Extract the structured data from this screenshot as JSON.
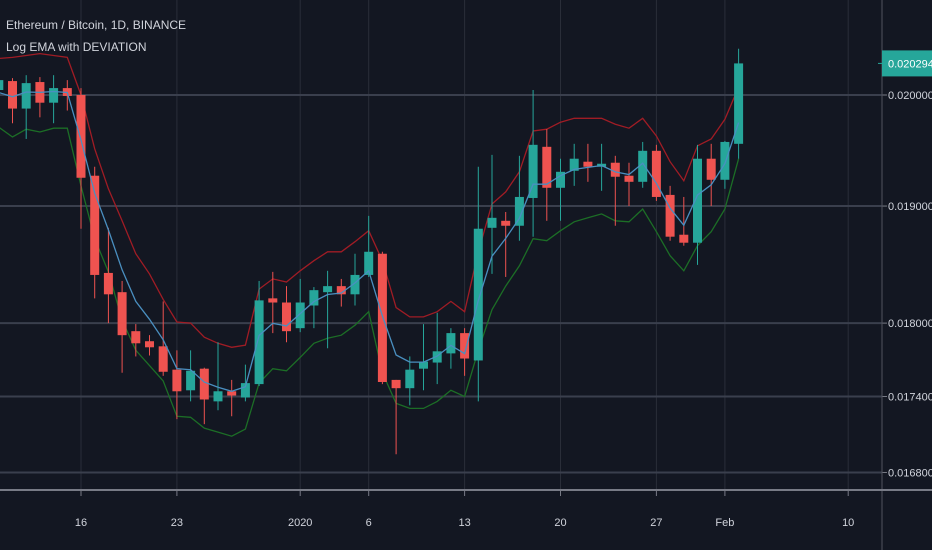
{
  "header": {
    "symbol_title": "Ethereum / Bitcoin, 1D, BINANCE",
    "indicator_title": "Log EMA with DEVIATION"
  },
  "colors": {
    "background": "#131722",
    "grid": "#2a2e39",
    "up": "#26a69a",
    "down": "#ef5350",
    "ema": "#4a8fc0",
    "upper_band": "#a01c25",
    "lower_band": "#1c6e26",
    "axis_text": "#d1d4dc",
    "last_price_badge": "#26a69a"
  },
  "chart_data": {
    "type": "candlestick",
    "y_scale": "log",
    "grid": true,
    "last_price_label": "0.020294",
    "y_ticks": [
      {
        "value": 0.02,
        "label": "0.020000"
      },
      {
        "value": 0.019,
        "label": "0.019000"
      },
      {
        "value": 0.018,
        "label": "0.018000"
      },
      {
        "value": 0.0174,
        "label": "0.017400"
      },
      {
        "value": 0.0168,
        "label": "0.016800"
      }
    ],
    "x_ticks": [
      {
        "date": "2019-12-16",
        "label": "16"
      },
      {
        "date": "2019-12-23",
        "label": "23"
      },
      {
        "date": "2020-01-01",
        "label": "2020"
      },
      {
        "date": "2020-01-06",
        "label": "6"
      },
      {
        "date": "2020-01-13",
        "label": "13"
      },
      {
        "date": "2020-01-20",
        "label": "20"
      },
      {
        "date": "2020-01-27",
        "label": "27"
      },
      {
        "date": "2020-02-01",
        "label": "Feb"
      },
      {
        "date": "2020-02-10",
        "label": "10"
      }
    ],
    "start_date": "2019-12-10",
    "ohlc": [
      [
        0.020046,
        0.020184,
        0.019955,
        0.020138
      ],
      [
        0.020129,
        0.020156,
        0.019741,
        0.019875
      ],
      [
        0.019875,
        0.020184,
        0.019598,
        0.02011
      ],
      [
        0.02012,
        0.020166,
        0.019795,
        0.019929
      ],
      [
        0.019929,
        0.020184,
        0.019741,
        0.020064
      ],
      [
        0.020064,
        0.020138,
        0.019857,
        0.019991
      ],
      [
        0.02,
        0.020064,
        0.018802,
        0.01925
      ],
      [
        0.019268,
        0.019348,
        0.018207,
        0.018405
      ],
      [
        0.018422,
        0.01881,
        0.018,
        0.018241
      ],
      [
        0.018259,
        0.018354,
        0.017592,
        0.0179
      ],
      [
        0.017933,
        0.017992,
        0.017725,
        0.017833
      ],
      [
        0.01785,
        0.0179,
        0.017733,
        0.0178
      ],
      [
        0.017808,
        0.018181,
        0.017567,
        0.0176
      ],
      [
        0.017617,
        0.017775,
        0.017219,
        0.017442
      ],
      [
        0.01745,
        0.017775,
        0.017361,
        0.017608
      ],
      [
        0.017625,
        0.017633,
        0.017179,
        0.017376
      ],
      [
        0.017361,
        0.017842,
        0.01729,
        0.017442
      ],
      [
        0.017442,
        0.017534,
        0.017242,
        0.017408
      ],
      [
        0.017392,
        0.017658,
        0.017361,
        0.017508
      ],
      [
        0.0175,
        0.018354,
        0.017484,
        0.01819
      ],
      [
        0.018207,
        0.018431,
        0.017917,
        0.018172
      ],
      [
        0.018172,
        0.01831,
        0.017842,
        0.017933
      ],
      [
        0.017958,
        0.018371,
        0.017925,
        0.018172
      ],
      [
        0.018147,
        0.018302,
        0.017958,
        0.018276
      ],
      [
        0.018259,
        0.01844,
        0.017792,
        0.01831
      ],
      [
        0.01831,
        0.018371,
        0.018138,
        0.018241
      ],
      [
        0.018241,
        0.018586,
        0.018147,
        0.018405
      ],
      [
        0.018405,
        0.018914,
        0.018388,
        0.018603
      ],
      [
        0.018586,
        0.018603,
        0.0175,
        0.017517
      ],
      [
        0.017534,
        0.017534,
        0.016942,
        0.017467
      ],
      [
        0.017467,
        0.017725,
        0.017329,
        0.017617
      ],
      [
        0.017625,
        0.017992,
        0.01745,
        0.017683
      ],
      [
        0.017675,
        0.018086,
        0.0175,
        0.017767
      ],
      [
        0.01775,
        0.017958,
        0.017625,
        0.017917
      ],
      [
        0.017917,
        0.017958,
        0.017567,
        0.017708
      ],
      [
        0.017692,
        0.019348,
        0.017361,
        0.018802
      ],
      [
        0.01881,
        0.019455,
        0.018414,
        0.018897
      ],
      [
        0.018871,
        0.018948,
        0.018388,
        0.018828
      ],
      [
        0.018828,
        0.019446,
        0.018698,
        0.01908
      ],
      [
        0.019071,
        0.020046,
        0.018733,
        0.019545
      ],
      [
        0.019527,
        0.019687,
        0.018871,
        0.019161
      ],
      [
        0.019161,
        0.01942,
        0.018871,
        0.019303
      ],
      [
        0.019312,
        0.019554,
        0.019178,
        0.01942
      ],
      [
        0.019393,
        0.019554,
        0.019214,
        0.019348
      ],
      [
        0.019348,
        0.019554,
        0.019134,
        0.019375
      ],
      [
        0.019384,
        0.019446,
        0.018828,
        0.019259
      ],
      [
        0.019268,
        0.019384,
        0.019,
        0.019214
      ],
      [
        0.019214,
        0.019571,
        0.019161,
        0.019491
      ],
      [
        0.019491,
        0.019545,
        0.019045,
        0.01908
      ],
      [
        0.019098,
        0.019178,
        0.018698,
        0.018733
      ],
      [
        0.01875,
        0.01908,
        0.018655,
        0.018681
      ],
      [
        0.018681,
        0.019545,
        0.018491,
        0.01942
      ],
      [
        0.01942,
        0.019554,
        0.019,
        0.019232
      ],
      [
        0.019232,
        0.01958,
        0.019152,
        0.019571
      ],
      [
        0.019554,
        0.020432,
        0.01942,
        0.020294
      ]
    ],
    "ema": [
      0.020023,
      0.019983,
      0.020028,
      0.020024,
      0.020032,
      0.020023,
      0.019589,
      0.019113,
      0.018792,
      0.018449,
      0.018181,
      0.018032,
      0.017862,
      0.017626,
      0.017617,
      0.017516,
      0.017475,
      0.017442,
      0.017479,
      0.017897,
      0.017998,
      0.017977,
      0.018079,
      0.01818,
      0.018239,
      0.018252,
      0.018337,
      0.01844,
      0.018059,
      0.017737,
      0.017679,
      0.017679,
      0.017728,
      0.017816,
      0.017748,
      0.018189,
      0.018565,
      0.018718,
      0.018893,
      0.019193,
      0.019193,
      0.019268,
      0.019324,
      0.019342,
      0.019359,
      0.019302,
      0.019279,
      0.01938,
      0.019201,
      0.018981,
      0.018832,
      0.019096,
      0.019187,
      0.019376,
      0.019747
    ],
    "upper": [
      0.02034,
      0.02035,
      0.020368,
      0.020386,
      0.020368,
      0.02035,
      0.02,
      0.019509,
      0.019152,
      0.018871,
      0.018586,
      0.018414,
      0.018198,
      0.018009,
      0.018,
      0.017883,
      0.017833,
      0.0178,
      0.017817,
      0.018285,
      0.018371,
      0.018345,
      0.01844,
      0.018526,
      0.018603,
      0.018603,
      0.01869,
      0.018785,
      0.018526,
      0.018129,
      0.018052,
      0.018052,
      0.018095,
      0.018181,
      0.018095,
      0.018603,
      0.019018,
      0.019125,
      0.019303,
      0.01967,
      0.019687,
      0.01975,
      0.019786,
      0.019786,
      0.019786,
      0.019732,
      0.019696,
      0.019786,
      0.019625,
      0.019393,
      0.019223,
      0.019536,
      0.019598,
      0.019777,
      0.020074
    ],
    "lower": [
      0.019705,
      0.019616,
      0.019687,
      0.019661,
      0.019696,
      0.019696,
      0.019178,
      0.018716,
      0.018431,
      0.018026,
      0.017775,
      0.01765,
      0.017525,
      0.017242,
      0.017234,
      0.017148,
      0.017116,
      0.017084,
      0.01714,
      0.017508,
      0.017625,
      0.017608,
      0.017717,
      0.017833,
      0.017875,
      0.0179,
      0.017983,
      0.018095,
      0.017592,
      0.017345,
      0.017305,
      0.017305,
      0.017361,
      0.01745,
      0.0174,
      0.017775,
      0.018112,
      0.01831,
      0.018483,
      0.018716,
      0.018698,
      0.018785,
      0.018862,
      0.018897,
      0.018931,
      0.018871,
      0.018862,
      0.018974,
      0.018776,
      0.018569,
      0.01844,
      0.018655,
      0.018776,
      0.018974,
      0.01942
    ]
  }
}
